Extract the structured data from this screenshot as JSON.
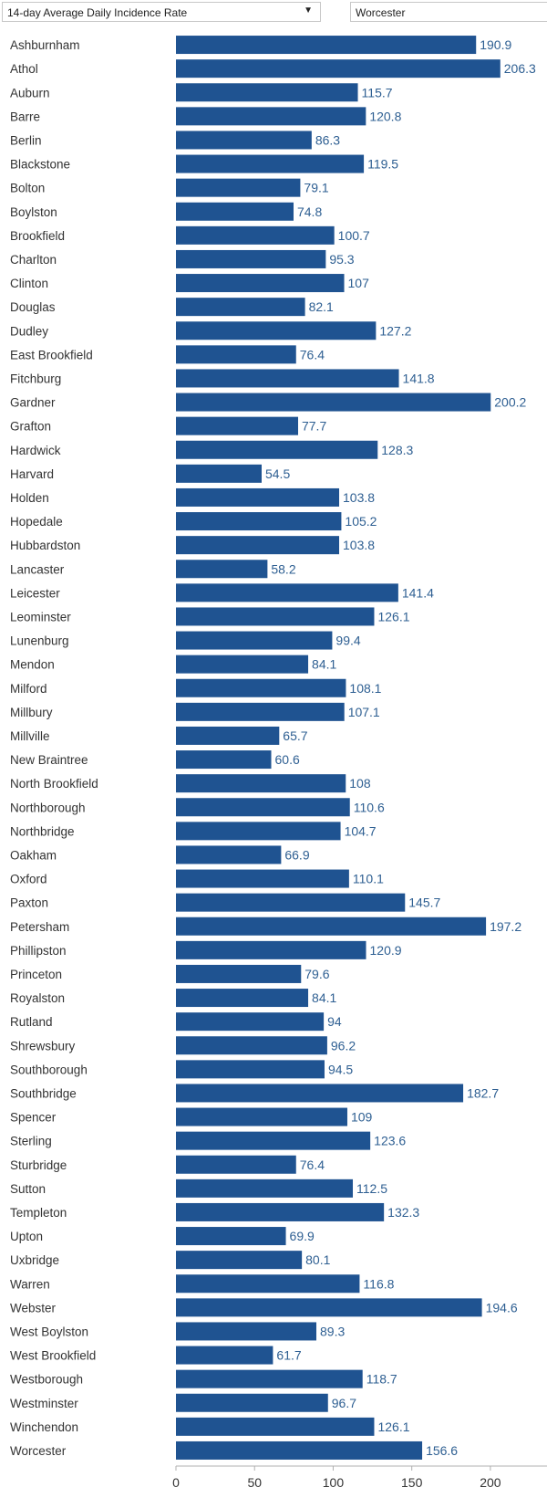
{
  "controls": {
    "metric_select": "14-day Average Daily Incidence Rate",
    "county": "Worcester"
  },
  "colors": {
    "bar": "#1f5391",
    "value_label": "#2e5f92",
    "axis": "#b0b0b0"
  },
  "chart_data": {
    "type": "bar",
    "orientation": "horizontal",
    "title": "",
    "xlabel": "",
    "ylabel": "",
    "xlim": [
      0,
      236
    ],
    "xticks": [
      0,
      50,
      100,
      150,
      200
    ],
    "grid": false,
    "legend": "none",
    "categories": [
      "Ashburnham",
      "Athol",
      "Auburn",
      "Barre",
      "Berlin",
      "Blackstone",
      "Bolton",
      "Boylston",
      "Brookfield",
      "Charlton",
      "Clinton",
      "Douglas",
      "Dudley",
      "East Brookfield",
      "Fitchburg",
      "Gardner",
      "Grafton",
      "Hardwick",
      "Harvard",
      "Holden",
      "Hopedale",
      "Hubbardston",
      "Lancaster",
      "Leicester",
      "Leominster",
      "Lunenburg",
      "Mendon",
      "Milford",
      "Millbury",
      "Millville",
      "New Braintree",
      "North Brookfield",
      "Northborough",
      "Northbridge",
      "Oakham",
      "Oxford",
      "Paxton",
      "Petersham",
      "Phillipston",
      "Princeton",
      "Royalston",
      "Rutland",
      "Shrewsbury",
      "Southborough",
      "Southbridge",
      "Spencer",
      "Sterling",
      "Sturbridge",
      "Sutton",
      "Templeton",
      "Upton",
      "Uxbridge",
      "Warren",
      "Webster",
      "West Boylston",
      "West Brookfield",
      "Westborough",
      "Westminster",
      "Winchendon",
      "Worcester"
    ],
    "values": [
      190.9,
      206.3,
      115.7,
      120.8,
      86.3,
      119.5,
      79.1,
      74.8,
      100.7,
      95.3,
      107,
      82.1,
      127.2,
      76.4,
      141.8,
      200.2,
      77.7,
      128.3,
      54.5,
      103.8,
      105.2,
      103.8,
      58.2,
      141.4,
      126.1,
      99.4,
      84.1,
      108.1,
      107.1,
      65.7,
      60.6,
      108,
      110.6,
      104.7,
      66.9,
      110.1,
      145.7,
      197.2,
      120.9,
      79.6,
      84.1,
      94,
      96.2,
      94.5,
      182.7,
      109,
      123.6,
      76.4,
      112.5,
      132.3,
      69.9,
      80.1,
      116.8,
      194.6,
      89.3,
      61.7,
      118.7,
      96.7,
      126.1,
      156.6
    ]
  }
}
